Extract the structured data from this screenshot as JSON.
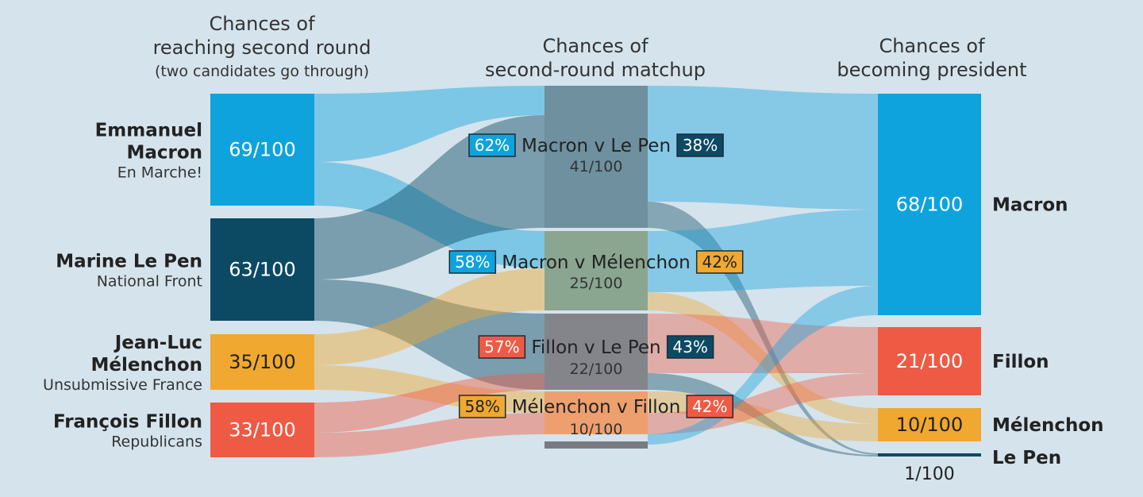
{
  "headers": {
    "col1": [
      "Chances of",
      "reaching second round"
    ],
    "col1_sub": "(two candidates go through)",
    "col2": [
      "Chances of",
      "second-round matchup"
    ],
    "col3": [
      "Chances of",
      "becoming president"
    ]
  },
  "colors": {
    "macron": "#0fa3de",
    "lepen": "#0c4a64",
    "melenchon": "#f0a830",
    "fillon": "#ef5a44",
    "background": "#d5e3ec"
  },
  "chart_data": {
    "type": "sankey",
    "candidates": [
      {
        "id": "macron",
        "name_lines": [
          "Emmanuel",
          "Macron"
        ],
        "party": "En Marche!",
        "value": "69/100"
      },
      {
        "id": "lepen",
        "name_lines": [
          "Marine Le Pen"
        ],
        "party": "National Front",
        "value": "63/100"
      },
      {
        "id": "melenchon",
        "name_lines": [
          "Jean-Luc",
          "Mélenchon"
        ],
        "party": "Unsubmissive France",
        "value": "35/100"
      },
      {
        "id": "fillon",
        "name_lines": [
          "François Fillon"
        ],
        "party": "Republicans",
        "value": "33/100"
      }
    ],
    "matchups": [
      {
        "id": "m_lp",
        "title": "Macron v Le Pen",
        "value": "41/100",
        "left": {
          "pct": "62%",
          "color": "macron"
        },
        "right": {
          "pct": "38%",
          "color": "lepen"
        },
        "box_color": "#6e909f"
      },
      {
        "id": "m_me",
        "title": "Macron v Mélenchon",
        "value": "25/100",
        "left": {
          "pct": "58%",
          "color": "macron"
        },
        "right": {
          "pct": "42%",
          "color": "melenchon"
        },
        "box_color": "#8aa590"
      },
      {
        "id": "f_lp",
        "title": "Fillon v Le Pen",
        "value": "22/100",
        "left": {
          "pct": "57%",
          "color": "fillon"
        },
        "right": {
          "pct": "43%",
          "color": "lepen"
        },
        "box_color": "#84858b"
      },
      {
        "id": "me_f",
        "title": "Mélenchon v Fillon",
        "value": "10/100",
        "left": {
          "pct": "58%",
          "color": "melenchon"
        },
        "right": {
          "pct": "42%",
          "color": "fillon"
        },
        "box_color": "#ee9f6e"
      }
    ],
    "outcomes": [
      {
        "id": "macron",
        "label": "Macron",
        "value": "68/100"
      },
      {
        "id": "fillon",
        "label": "Fillon",
        "value": "21/100"
      },
      {
        "id": "melenchon",
        "label": "Mélenchon",
        "value": "10/100"
      },
      {
        "id": "lepen",
        "label": "Le Pen",
        "value": "1/100"
      }
    ]
  }
}
